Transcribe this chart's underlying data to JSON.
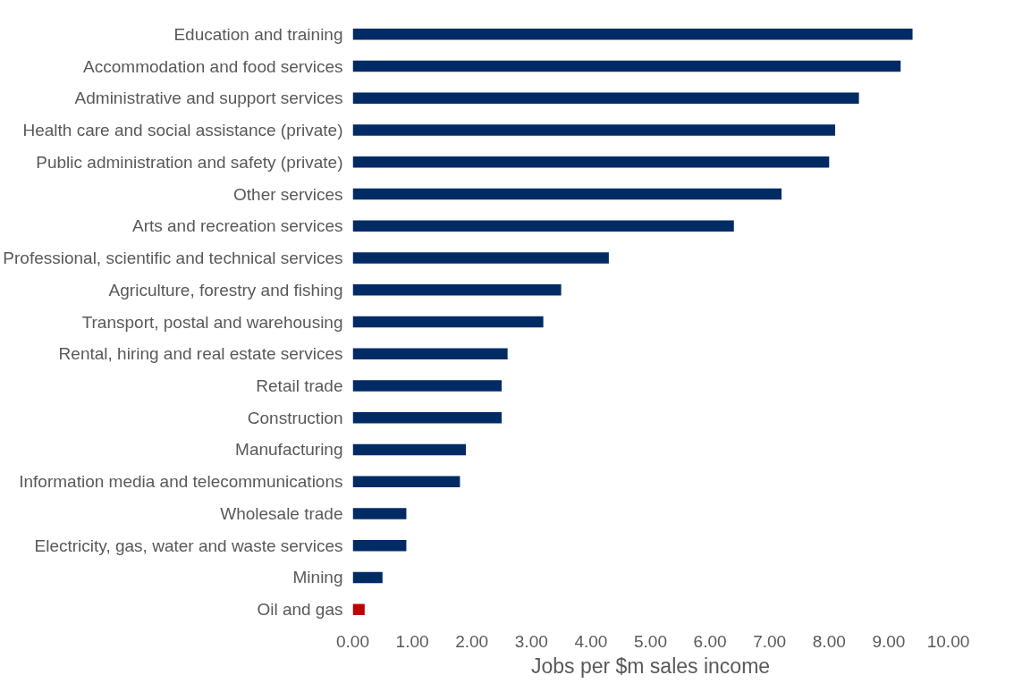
{
  "chart_data": {
    "type": "bar",
    "orientation": "horizontal",
    "xlabel": "Jobs per $m sales income",
    "categories": [
      "Education and training",
      "Accommodation and food services",
      "Administrative and support services",
      "Health care and social assistance (private)",
      "Public administration and safety (private)",
      "Other services",
      "Arts and recreation services",
      "Professional, scientific and technical services",
      "Agriculture, forestry and fishing",
      "Transport, postal and warehousing",
      "Rental, hiring and real estate services",
      "Retail trade",
      "Construction",
      "Manufacturing",
      "Information media and telecommunications",
      "Wholesale trade",
      "Electricity, gas, water and waste services",
      "Mining",
      "Oil and gas"
    ],
    "values": [
      9.4,
      9.2,
      8.5,
      8.1,
      8.0,
      7.2,
      6.4,
      4.3,
      3.5,
      3.2,
      2.6,
      2.5,
      2.5,
      1.9,
      1.8,
      0.9,
      0.9,
      0.5,
      0.2
    ],
    "colors": [
      "#002b64",
      "#002b64",
      "#002b64",
      "#002b64",
      "#002b64",
      "#002b64",
      "#002b64",
      "#002b64",
      "#002b64",
      "#002b64",
      "#002b64",
      "#002b64",
      "#002b64",
      "#002b64",
      "#002b64",
      "#002b64",
      "#002b64",
      "#002b64",
      "#c00000"
    ],
    "xlim": [
      0,
      10
    ],
    "xticks": [
      {
        "value": 0,
        "label": "0.00"
      },
      {
        "value": 1,
        "label": "1.00"
      },
      {
        "value": 2,
        "label": "2.00"
      },
      {
        "value": 3,
        "label": "3.00"
      },
      {
        "value": 4,
        "label": "4.00"
      },
      {
        "value": 5,
        "label": "5.00"
      },
      {
        "value": 6,
        "label": "6.00"
      },
      {
        "value": 7,
        "label": "7.00"
      },
      {
        "value": 8,
        "label": "8.00"
      },
      {
        "value": 9,
        "label": "9.00"
      },
      {
        "value": 10,
        "label": "10.00"
      }
    ],
    "grid": false
  }
}
